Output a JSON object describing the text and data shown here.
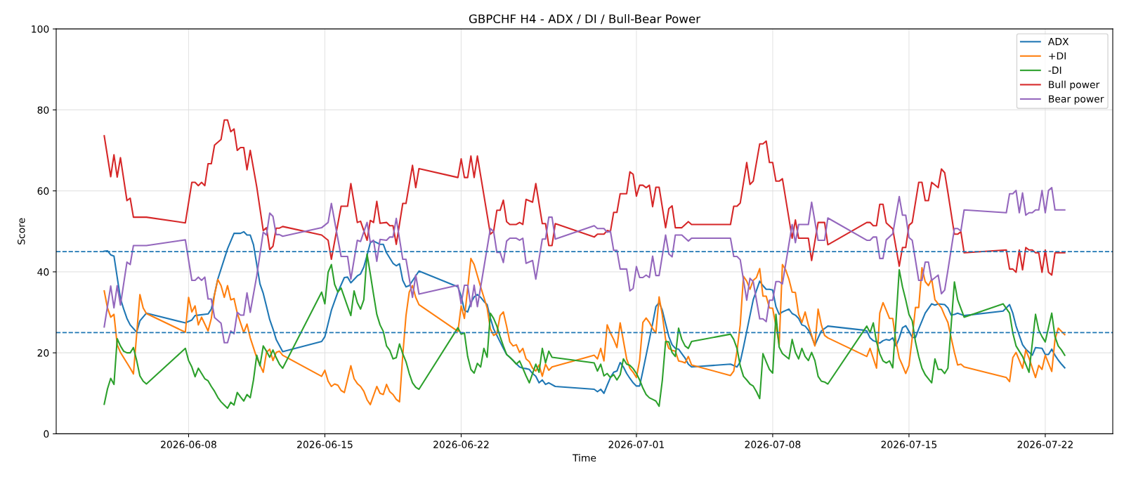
{
  "chart_data": {
    "type": "line",
    "title": "GBPCHF H4 - ADX / DI / Bull-Bear Power",
    "xlabel": "Time",
    "ylabel": "Score",
    "xlim": [
      "2026-06-01T04:48",
      "2026-07-25T11:12"
    ],
    "ylim": [
      0,
      100
    ],
    "xticks": [
      "2026-06-08",
      "2026-06-15",
      "2026-06-22",
      "2026-07-01",
      "2026-07-08",
      "2026-07-15",
      "2026-07-22"
    ],
    "yticks": [
      0,
      20,
      40,
      60,
      80,
      100
    ],
    "grid": true,
    "legend": "top right",
    "line_style": "solid",
    "ref_lines": [
      {
        "axis": "y",
        "value": 45,
        "color": "#1f77b4",
        "line_style": "dashed"
      },
      {
        "axis": "y",
        "value": 25,
        "color": "#1f77b4",
        "line_style": "dashed"
      }
    ],
    "x": [
      "2026-06-03T16:00",
      "2026-06-04T00:00",
      "2026-06-04T04:00",
      "2026-06-04T08:00",
      "2026-06-04T12:00",
      "2026-06-04T20:00",
      "2026-06-05T00:00",
      "2026-06-05T04:00",
      "2026-06-05T20:00",
      "2026-06-07T20:00",
      "2026-06-08T04:00",
      "2026-06-08T08:00",
      "2026-06-08T12:00",
      "2026-06-08T16:00",
      "2026-06-08T20:00",
      "2026-06-09T00:00",
      "2026-06-09T04:00",
      "2026-06-09T08:00",
      "2026-06-09T16:00",
      "2026-06-09T20:00",
      "2026-06-10T00:00",
      "2026-06-10T04:00",
      "2026-06-10T08:00",
      "2026-06-10T12:00",
      "2026-06-10T16:00",
      "2026-06-10T20:00",
      "2026-06-11T00:00",
      "2026-06-11T04:00",
      "2026-06-11T12:00",
      "2026-06-11T20:00",
      "2026-06-12T00:00",
      "2026-06-12T04:00",
      "2026-06-12T08:00",
      "2026-06-12T12:00",
      "2026-06-12T16:00",
      "2026-06-12T20:00",
      "2026-06-14T20:00",
      "2026-06-15T04:00",
      "2026-06-15T08:00",
      "2026-06-15T20:00",
      "2026-06-16T04:00",
      "2026-06-16T08:00",
      "2026-06-16T16:00",
      "2026-06-16T20:00",
      "2026-06-17T04:00",
      "2026-06-17T08:00",
      "2026-06-17T12:00",
      "2026-06-17T16:00",
      "2026-06-17T20:00",
      "2026-06-18T04:00",
      "2026-06-18T08:00",
      "2026-06-18T12:00",
      "2026-06-18T16:00",
      "2026-06-19T00:00",
      "2026-06-19T04:00",
      "2026-06-19T12:00",
      "2026-06-19T16:00",
      "2026-06-19T20:00",
      "2026-06-21T20:00",
      "2026-06-22T00:00",
      "2026-06-22T04:00",
      "2026-06-22T08:00",
      "2026-06-22T12:00",
      "2026-06-22T16:00",
      "2026-06-22T20:00",
      "2026-06-23T12:00",
      "2026-06-23T16:00",
      "2026-06-23T20:00",
      "2026-06-24T00:00",
      "2026-06-24T04:00",
      "2026-06-24T08:00",
      "2026-06-24T12:00",
      "2026-06-24T20:00",
      "2026-06-25T00:00",
      "2026-06-25T04:00",
      "2026-06-25T08:00",
      "2026-06-25T16:00",
      "2026-06-25T20:00",
      "2026-06-26T04:00",
      "2026-06-26T08:00",
      "2026-06-26T12:00",
      "2026-06-26T16:00",
      "2026-06-26T20:00",
      "2026-06-28T20:00",
      "2026-06-29T00:00",
      "2026-06-29T08:00",
      "2026-06-29T12:00",
      "2026-06-29T16:00",
      "2026-06-29T20:00",
      "2026-06-30T00:00",
      "2026-06-30T04:00",
      "2026-06-30T12:00",
      "2026-06-30T16:00",
      "2026-06-30T20:00",
      "2026-07-01T00:00",
      "2026-07-01T04:00",
      "2026-07-01T08:00",
      "2026-07-01T12:00",
      "2026-07-01T16:00",
      "2026-07-01T20:00",
      "2026-07-02T00:00",
      "2026-07-02T04:00",
      "2026-07-02T12:00",
      "2026-07-02T16:00",
      "2026-07-02T20:00",
      "2026-07-03T00:00",
      "2026-07-03T08:00",
      "2026-07-03T16:00",
      "2026-07-03T20:00",
      "2026-07-05T20:00",
      "2026-07-06T00:00",
      "2026-07-06T04:00",
      "2026-07-06T08:00",
      "2026-07-06T16:00",
      "2026-07-06T20:00",
      "2026-07-07T00:00",
      "2026-07-07T08:00",
      "2026-07-07T12:00",
      "2026-07-07T16:00",
      "2026-07-07T20:00",
      "2026-07-08T00:00",
      "2026-07-08T04:00",
      "2026-07-08T08:00",
      "2026-07-08T12:00",
      "2026-07-09T00:00",
      "2026-07-09T04:00",
      "2026-07-09T08:00",
      "2026-07-09T20:00",
      "2026-07-10T00:00",
      "2026-07-10T08:00",
      "2026-07-10T16:00",
      "2026-07-10T20:00",
      "2026-07-12T20:00",
      "2026-07-13T00:00",
      "2026-07-13T04:00",
      "2026-07-13T08:00",
      "2026-07-13T12:00",
      "2026-07-13T16:00",
      "2026-07-13T20:00",
      "2026-07-14T04:00",
      "2026-07-14T12:00",
      "2026-07-14T16:00",
      "2026-07-14T20:00",
      "2026-07-15T00:00",
      "2026-07-15T04:00",
      "2026-07-15T12:00",
      "2026-07-15T16:00",
      "2026-07-15T20:00",
      "2026-07-16T00:00",
      "2026-07-16T04:00",
      "2026-07-16T12:00",
      "2026-07-16T16:00",
      "2026-07-16T20:00",
      "2026-07-17T00:00",
      "2026-07-17T08:00",
      "2026-07-17T12:00",
      "2026-07-17T16:00",
      "2026-07-17T20:00",
      "2026-07-20T00:00",
      "2026-07-20T04:00",
      "2026-07-20T08:00",
      "2026-07-20T12:00",
      "2026-07-20T16:00",
      "2026-07-20T20:00",
      "2026-07-21T00:00",
      "2026-07-21T04:00",
      "2026-07-21T08:00",
      "2026-07-21T12:00",
      "2026-07-21T16:00",
      "2026-07-21T20:00",
      "2026-07-22T00:00",
      "2026-07-22T04:00",
      "2026-07-22T08:00",
      "2026-07-22T12:00",
      "2026-07-23T00:00"
    ],
    "series": [
      {
        "name": "ADX",
        "color": "#1f77b4",
        "x": [
          "2026-06-03T16:00",
          "2026-06-03T20:00",
          "2026-06-04T00:00",
          "2026-06-04T04:00",
          "2026-06-04T12:00",
          "2026-06-04T16:00",
          "2026-06-04T20:00",
          "2026-06-05T00:00",
          "2026-06-05T08:00",
          "2026-06-05T12:00",
          "2026-06-05T20:00",
          "2026-06-07T20:00",
          "2026-06-08T04:00",
          "2026-06-08T08:00",
          "2026-06-09T00:00",
          "2026-06-09T04:00",
          "2026-06-09T12:00",
          "2026-06-10T00:00",
          "2026-06-10T08:00",
          "2026-06-10T16:00",
          "2026-06-10T20:00",
          "2026-06-11T00:00",
          "2026-06-11T04:00",
          "2026-06-11T08:00",
          "2026-06-11T16:00",
          "2026-06-11T20:00",
          "2026-06-12T00:00",
          "2026-06-12T04:00",
          "2026-06-12T08:00",
          "2026-06-12T12:00",
          "2026-06-12T20:00",
          "2026-06-14T20:00",
          "2026-06-15T00:00",
          "2026-06-15T08:00",
          "2026-06-15T16:00",
          "2026-06-16T00:00",
          "2026-06-16T04:00",
          "2026-06-16T08:00",
          "2026-06-16T16:00",
          "2026-06-16T20:00",
          "2026-06-17T00:00",
          "2026-06-17T04:00",
          "2026-06-17T08:00",
          "2026-06-17T12:00",
          "2026-06-17T20:00",
          "2026-06-18T00:00",
          "2026-06-18T04:00",
          "2026-06-18T08:00",
          "2026-06-18T12:00",
          "2026-06-18T16:00",
          "2026-06-18T20:00",
          "2026-06-19T00:00",
          "2026-06-19T04:00",
          "2026-06-19T08:00",
          "2026-06-19T20:00",
          "2026-06-21T20:00",
          "2026-06-22T00:00",
          "2026-06-22T04:00",
          "2026-06-22T08:00",
          "2026-06-22T12:00",
          "2026-06-22T16:00",
          "2026-06-22T20:00",
          "2026-06-23T00:00",
          "2026-06-23T04:00",
          "2026-06-23T08:00",
          "2026-06-23T12:00",
          "2026-06-23T16:00",
          "2026-06-23T20:00",
          "2026-06-24T00:00",
          "2026-06-24T04:00",
          "2026-06-24T08:00",
          "2026-06-24T12:00",
          "2026-06-24T16:00",
          "2026-06-24T20:00",
          "2026-06-25T00:00",
          "2026-06-25T04:00",
          "2026-06-25T08:00",
          "2026-06-25T12:00",
          "2026-06-25T16:00",
          "2026-06-25T20:00",
          "2026-06-26T00:00",
          "2026-06-26T04:00",
          "2026-06-26T08:00",
          "2026-06-26T12:00",
          "2026-06-26T20:00",
          "2026-06-28T20:00",
          "2026-06-29T00:00",
          "2026-06-29T04:00",
          "2026-06-29T08:00",
          "2026-06-29T12:00",
          "2026-06-29T16:00",
          "2026-06-29T20:00",
          "2026-06-30T00:00",
          "2026-06-30T04:00",
          "2026-06-30T08:00",
          "2026-06-30T12:00",
          "2026-06-30T16:00",
          "2026-06-30T20:00",
          "2026-07-01T00:00",
          "2026-07-01T04:00",
          "2026-07-01T08:00",
          "2026-07-01T12:00",
          "2026-07-01T16:00",
          "2026-07-01T20:00",
          "2026-07-02T00:00",
          "2026-07-02T04:00",
          "2026-07-02T08:00",
          "2026-07-02T12:00",
          "2026-07-02T16:00",
          "2026-07-02T20:00",
          "2026-07-03T00:00",
          "2026-07-03T04:00",
          "2026-07-03T08:00",
          "2026-07-03T12:00",
          "2026-07-03T16:00",
          "2026-07-03T20:00",
          "2026-07-05T20:00",
          "2026-07-06T04:00",
          "2026-07-06T08:00",
          "2026-07-06T12:00",
          "2026-07-06T16:00",
          "2026-07-07T00:00",
          "2026-07-07T08:00",
          "2026-07-07T12:00",
          "2026-07-07T16:00",
          "2026-07-07T20:00",
          "2026-07-08T00:00",
          "2026-07-08T04:00",
          "2026-07-08T08:00",
          "2026-07-08T12:00",
          "2026-07-08T20:00",
          "2026-07-09T00:00",
          "2026-07-09T04:00",
          "2026-07-09T08:00",
          "2026-07-09T12:00",
          "2026-07-09T16:00",
          "2026-07-09T20:00",
          "2026-07-10T00:00",
          "2026-07-10T04:00",
          "2026-07-10T08:00",
          "2026-07-10T12:00",
          "2026-07-10T20:00",
          "2026-07-12T16:00",
          "2026-07-12T20:00",
          "2026-07-13T00:00",
          "2026-07-13T04:00",
          "2026-07-13T08:00",
          "2026-07-13T12:00",
          "2026-07-13T16:00",
          "2026-07-13T20:00",
          "2026-07-14T00:00",
          "2026-07-14T04:00",
          "2026-07-14T08:00",
          "2026-07-14T12:00",
          "2026-07-14T16:00",
          "2026-07-14T20:00",
          "2026-07-15T00:00",
          "2026-07-15T04:00",
          "2026-07-15T08:00",
          "2026-07-15T12:00",
          "2026-07-15T20:00",
          "2026-07-16T04:00",
          "2026-07-16T08:00",
          "2026-07-16T12:00",
          "2026-07-16T20:00",
          "2026-07-17T00:00",
          "2026-07-17T04:00",
          "2026-07-17T08:00",
          "2026-07-17T12:00",
          "2026-07-17T20:00",
          "2026-07-19T20:00",
          "2026-07-20T04:00",
          "2026-07-20T08:00",
          "2026-07-20T12:00",
          "2026-07-20T20:00",
          "2026-07-21T00:00",
          "2026-07-21T08:00",
          "2026-07-21T12:00",
          "2026-07-21T20:00",
          "2026-07-22T00:00",
          "2026-07-22T04:00",
          "2026-07-22T08:00",
          "2026-07-22T12:00",
          "2026-07-22T16:00",
          "2026-07-22T20:00",
          "2026-07-23T00:00"
        ],
        "values": [
          45.1,
          45.2,
          44.2,
          43.9,
          33.4,
          30.8,
          28.5,
          26.9,
          25.1,
          27.9,
          29.8,
          27.4,
          28.1,
          29.2,
          29.6,
          30.8,
          38.2,
          45.7,
          49.5,
          49.5,
          49.9,
          49.1,
          49.1,
          46.7,
          37.0,
          34.7,
          31.5,
          28.2,
          25.9,
          23.3,
          20.3,
          22.8,
          24.0,
          30.5,
          35.0,
          38.6,
          38.7,
          37.3,
          39.0,
          39.5,
          41.2,
          44.1,
          47.2,
          47.6,
          46.8,
          46.8,
          44.7,
          43.4,
          42.1,
          41.5,
          42.0,
          37.9,
          36.3,
          36.6,
          40.2,
          36.3,
          34.0,
          30.5,
          30.1,
          32.4,
          33.8,
          34.4,
          33.7,
          32.7,
          31.9,
          28.6,
          25.9,
          24.3,
          22.7,
          21.1,
          19.6,
          18.9,
          18.1,
          17.3,
          16.5,
          16.2,
          16.1,
          15.9,
          14.9,
          14.2,
          12.6,
          13.3,
          12.2,
          12.6,
          11.7,
          11.0,
          10.4,
          11.0,
          10.0,
          12.0,
          13.9,
          15.2,
          15.5,
          17.6,
          16.5,
          14.9,
          13.7,
          12.6,
          11.8,
          11.8,
          15.5,
          19.4,
          23.3,
          27.2,
          31.4,
          32.4,
          30.5,
          27.2,
          24.0,
          22.0,
          21.1,
          20.9,
          19.8,
          18.7,
          17.2,
          16.5,
          17.2,
          16.5,
          17.8,
          21.4,
          25.3,
          33.1,
          37.7,
          36.6,
          35.7,
          35.7,
          35.5,
          31.4,
          29.5,
          30.1,
          30.8,
          29.7,
          29.3,
          28.5,
          26.9,
          26.6,
          25.6,
          24.0,
          21.9,
          23.7,
          25.4,
          26.6,
          25.6,
          25.4,
          23.7,
          23.0,
          22.7,
          22.4,
          23.0,
          23.3,
          23.1,
          23.7,
          21.7,
          23.7,
          26.2,
          26.7,
          25.3,
          23.8,
          23.8,
          25.9,
          29.8,
          32.1,
          31.8,
          32.1,
          31.9,
          31.1,
          29.3,
          29.5,
          29.8,
          29.2,
          30.3,
          31.9,
          29.8,
          26.6,
          22.0,
          20.9,
          19.4,
          21.3,
          21.1,
          19.6,
          19.6,
          20.9,
          19.4,
          18.2,
          17.2,
          16.3
        ]
      },
      {
        "name": "+DI",
        "color": "#ff7f0e",
        "x": [
          "2026-06-03T16:00",
          "2026-06-03T20:00",
          "2026-06-04T00:00",
          "2026-06-04T04:00",
          "2026-06-04T08:00",
          "2026-06-04T12:00",
          "2026-06-04T20:00",
          "2026-06-05T00:00",
          "2026-06-05T04:00",
          "2026-06-05T08:00",
          "2026-06-05T12:00",
          "2026-06-05T16:00",
          "2026-06-05T20:00",
          "2026-06-07T20:00",
          "2026-06-08T00:00",
          "2026-06-08T04:00",
          "2026-06-08T08:00",
          "2026-06-08T12:00",
          "2026-06-08T16:00",
          "2026-06-09T00:00",
          "2026-06-09T04:00",
          "2026-06-09T08:00",
          "2026-06-09T12:00",
          "2026-06-09T16:00",
          "2026-06-09T20:00",
          "2026-06-10T00:00",
          "2026-06-10T04:00",
          "2026-06-10T08:00",
          "2026-06-10T12:00",
          "2026-06-10T20:00",
          "2026-06-11T00:00",
          "2026-06-11T04:00",
          "2026-06-11T12:00",
          "2026-06-11T20:00",
          "2026-06-12T00:00",
          "2026-06-12T04:00",
          "2026-06-12T08:00",
          "2026-06-12T12:00",
          "2026-06-12T16:00",
          "2026-06-12T20:00",
          "2026-06-14T20:00",
          "2026-06-15T00:00",
          "2026-06-15T04:00",
          "2026-06-15T08:00",
          "2026-06-15T12:00",
          "2026-06-15T16:00",
          "2026-06-15T20:00",
          "2026-06-16T00:00",
          "2026-06-16T08:00",
          "2026-06-16T12:00",
          "2026-06-16T16:00",
          "2026-06-16T20:00",
          "2026-06-17T00:00",
          "2026-06-17T04:00",
          "2026-06-17T08:00",
          "2026-06-17T16:00",
          "2026-06-17T20:00",
          "2026-06-18T00:00",
          "2026-06-18T04:00",
          "2026-06-18T08:00",
          "2026-06-18T12:00",
          "2026-06-18T16:00",
          "2026-06-18T20:00",
          "2026-06-19T00:00",
          "2026-06-19T04:00",
          "2026-06-19T08:00",
          "2026-06-19T12:00",
          "2026-06-19T16:00",
          "2026-06-19T20:00",
          "2026-06-21T20:00",
          "2026-06-22T00:00",
          "2026-06-22T04:00",
          "2026-06-22T12:00",
          "2026-06-22T16:00",
          "2026-06-23T00:00",
          "2026-06-23T04:00",
          "2026-06-23T08:00",
          "2026-06-23T12:00",
          "2026-06-23T16:00",
          "2026-06-23T20:00",
          "2026-06-24T00:00",
          "2026-06-24T04:00",
          "2026-06-24T08:00",
          "2026-06-24T12:00",
          "2026-06-24T16:00",
          "2026-06-24T20:00",
          "2026-06-25T00:00",
          "2026-06-25T04:00",
          "2026-06-25T08:00",
          "2026-06-25T12:00",
          "2026-06-25T16:00",
          "2026-06-25T20:00",
          "2026-06-26T00:00",
          "2026-06-26T04:00",
          "2026-06-26T08:00",
          "2026-06-26T12:00",
          "2026-06-26T16:00",
          "2026-06-28T20:00",
          "2026-06-29T00:00",
          "2026-06-29T04:00",
          "2026-06-29T08:00",
          "2026-06-29T12:00",
          "2026-06-29T16:00",
          "2026-06-29T20:00",
          "2026-06-30T00:00",
          "2026-06-30T04:00",
          "2026-06-30T12:00",
          "2026-06-30T16:00",
          "2026-06-30T20:00",
          "2026-07-01T00:00",
          "2026-07-01T04:00",
          "2026-07-01T08:00",
          "2026-07-01T12:00",
          "2026-07-01T16:00",
          "2026-07-01T20:00",
          "2026-07-02T00:00",
          "2026-07-02T04:00",
          "2026-07-02T08:00",
          "2026-07-02T12:00",
          "2026-07-02T16:00",
          "2026-07-02T20:00",
          "2026-07-03T00:00",
          "2026-07-03T04:00",
          "2026-07-03T08:00",
          "2026-07-03T12:00",
          "2026-07-03T16:00",
          "2026-07-03T20:00",
          "2026-07-05T20:00",
          "2026-07-06T00:00",
          "2026-07-06T04:00",
          "2026-07-06T08:00",
          "2026-07-06T12:00",
          "2026-07-06T16:00",
          "2026-07-06T20:00",
          "2026-07-07T00:00",
          "2026-07-07T04:00",
          "2026-07-07T08:00",
          "2026-07-07T12:00",
          "2026-07-07T16:00",
          "2026-07-07T20:00",
          "2026-07-08T00:00",
          "2026-07-08T04:00",
          "2026-07-08T08:00",
          "2026-07-08T12:00",
          "2026-07-08T16:00",
          "2026-07-08T20:00",
          "2026-07-09T00:00",
          "2026-07-09T04:00",
          "2026-07-09T08:00",
          "2026-07-09T12:00",
          "2026-07-09T16:00",
          "2026-07-09T20:00",
          "2026-07-10T04:00",
          "2026-07-10T08:00",
          "2026-07-10T12:00",
          "2026-07-10T16:00",
          "2026-07-10T20:00",
          "2026-07-12T20:00",
          "2026-07-13T00:00",
          "2026-07-13T08:00",
          "2026-07-13T12:00",
          "2026-07-13T16:00",
          "2026-07-13T20:00",
          "2026-07-14T00:00",
          "2026-07-14T04:00",
          "2026-07-14T08:00",
          "2026-07-14T12:00",
          "2026-07-14T16:00",
          "2026-07-14T20:00",
          "2026-07-15T00:00",
          "2026-07-15T04:00",
          "2026-07-15T08:00",
          "2026-07-15T12:00",
          "2026-07-15T16:00",
          "2026-07-15T20:00",
          "2026-07-16T00:00",
          "2026-07-16T04:00",
          "2026-07-16T08:00",
          "2026-07-16T16:00",
          "2026-07-16T20:00",
          "2026-07-17T00:00",
          "2026-07-17T04:00",
          "2026-07-17T08:00",
          "2026-07-17T12:00",
          "2026-07-17T16:00",
          "2026-07-17T20:00",
          "2026-07-20T00:00",
          "2026-07-20T04:00",
          "2026-07-20T08:00",
          "2026-07-20T12:00",
          "2026-07-20T20:00",
          "2026-07-21T00:00",
          "2026-07-21T04:00",
          "2026-07-21T12:00",
          "2026-07-21T16:00",
          "2026-07-21T20:00",
          "2026-07-22T00:00",
          "2026-07-22T08:00",
          "2026-07-22T12:00",
          "2026-07-22T16:00",
          "2026-07-23T00:00"
        ],
        "values": [
          35.3,
          31.1,
          28.8,
          29.5,
          22.0,
          20.1,
          17.5,
          16.2,
          14.8,
          24.6,
          34.4,
          31.1,
          29.7,
          25.1,
          33.7,
          30.1,
          31.6,
          26.9,
          28.8,
          25.4,
          28.5,
          34.4,
          38.1,
          36.6,
          33.7,
          36.6,
          33.1,
          33.4,
          29.8,
          25.0,
          27.1,
          23.7,
          18.8,
          15.2,
          20.1,
          20.9,
          18.1,
          20.1,
          20.4,
          19.4,
          14.2,
          15.7,
          13.0,
          11.7,
          12.3,
          12.0,
          10.7,
          10.2,
          16.8,
          13.6,
          12.4,
          11.7,
          10.5,
          8.4,
          7.2,
          11.7,
          10.0,
          9.7,
          12.2,
          10.4,
          9.7,
          8.5,
          7.9,
          19.4,
          29.2,
          35.0,
          36.6,
          33.7,
          31.9,
          25.3,
          31.6,
          28.5,
          43.3,
          41.8,
          36.3,
          33.7,
          31.1,
          25.9,
          24.3,
          24.8,
          29.2,
          30.1,
          26.6,
          22.7,
          21.7,
          22.0,
          20.1,
          21.1,
          18.5,
          17.8,
          16.2,
          15.5,
          17.0,
          14.2,
          17.2,
          15.7,
          16.5,
          19.4,
          18.5,
          21.1,
          18.0,
          26.9,
          24.9,
          23.3,
          21.3,
          27.4,
          18.5,
          16.2,
          15.2,
          13.9,
          18.1,
          27.5,
          28.6,
          27.5,
          26.0,
          24.9,
          33.8,
          29.3,
          23.3,
          21.1,
          20.6,
          20.4,
          18.0,
          17.8,
          17.5,
          19.1,
          17.0,
          14.4,
          15.5,
          20.4,
          26.9,
          38.9,
          37.7,
          35.7,
          37.9,
          38.6,
          40.8,
          34.0,
          34.0,
          31.1,
          31.0,
          26.6,
          22.0,
          41.8,
          40.5,
          38.2,
          35.0,
          34.9,
          29.5,
          27.5,
          30.1,
          26.9,
          21.7,
          30.8,
          26.9,
          24.3,
          23.7,
          19.1,
          21.1,
          16.2,
          29.8,
          32.4,
          30.5,
          28.5,
          28.5,
          22.7,
          18.7,
          16.9,
          14.9,
          16.9,
          23.7,
          31.2,
          31.2,
          41.0,
          37.6,
          36.6,
          38.2,
          33.1,
          31.1,
          29.2,
          27.5,
          23.7,
          20.1,
          17.0,
          17.2,
          16.5,
          13.9,
          12.9,
          18.8,
          20.1,
          16.2,
          20.7,
          18.7,
          13.9,
          16.9,
          15.9,
          19.4,
          15.4,
          23.3,
          26.1,
          24.5
        ]
      },
      {
        "name": "-DI",
        "color": "#2ca02c",
        "x": [
          "2026-06-03T16:00",
          "2026-06-03T20:00",
          "2026-06-04T00:00",
          "2026-06-04T04:00",
          "2026-06-04T08:00",
          "2026-06-04T12:00",
          "2026-06-04T16:00",
          "2026-06-04T20:00",
          "2026-06-05T00:00",
          "2026-06-05T04:00",
          "2026-06-05T08:00",
          "2026-06-05T12:00",
          "2026-06-05T16:00",
          "2026-06-05T20:00",
          "2026-06-07T20:00",
          "2026-06-08T00:00",
          "2026-06-08T04:00",
          "2026-06-08T08:00",
          "2026-06-08T12:00",
          "2026-06-08T16:00",
          "2026-06-08T20:00",
          "2026-06-09T00:00",
          "2026-06-09T04:00",
          "2026-06-09T08:00",
          "2026-06-09T12:00",
          "2026-06-09T16:00",
          "2026-06-09T20:00",
          "2026-06-10T00:00",
          "2026-06-10T04:00",
          "2026-06-10T08:00",
          "2026-06-10T12:00",
          "2026-06-10T16:00",
          "2026-06-10T20:00",
          "2026-06-11T00:00",
          "2026-06-11T04:00",
          "2026-06-11T08:00",
          "2026-06-11T12:00",
          "2026-06-11T16:00",
          "2026-06-11T20:00",
          "2026-06-12T00:00",
          "2026-06-12T04:00",
          "2026-06-12T08:00",
          "2026-06-12T12:00",
          "2026-06-12T16:00",
          "2026-06-12T20:00",
          "2026-06-14T20:00",
          "2026-06-15T00:00",
          "2026-06-15T04:00",
          "2026-06-15T08:00",
          "2026-06-15T12:00",
          "2026-06-15T16:00",
          "2026-06-15T20:00",
          "2026-06-16T00:00",
          "2026-06-16T04:00",
          "2026-06-16T08:00",
          "2026-06-16T12:00",
          "2026-06-16T16:00",
          "2026-06-16T20:00",
          "2026-06-17T00:00",
          "2026-06-17T04:00",
          "2026-06-17T08:00",
          "2026-06-17T12:00",
          "2026-06-17T16:00",
          "2026-06-17T20:00",
          "2026-06-18T00:00",
          "2026-06-18T04:00",
          "2026-06-18T08:00",
          "2026-06-18T12:00",
          "2026-06-18T16:00",
          "2026-06-18T20:00",
          "2026-06-19T00:00",
          "2026-06-19T04:00",
          "2026-06-19T08:00",
          "2026-06-19T12:00",
          "2026-06-19T16:00",
          "2026-06-19T20:00",
          "2026-06-21T20:00",
          "2026-06-22T00:00",
          "2026-06-22T04:00",
          "2026-06-22T08:00",
          "2026-06-22T12:00",
          "2026-06-22T16:00",
          "2026-06-22T20:00",
          "2026-06-23T00:00",
          "2026-06-23T04:00",
          "2026-06-23T08:00",
          "2026-06-23T12:00",
          "2026-06-23T16:00",
          "2026-06-23T20:00",
          "2026-06-24T00:00",
          "2026-06-24T04:00",
          "2026-06-24T08:00",
          "2026-06-24T12:00",
          "2026-06-24T16:00",
          "2026-06-24T20:00",
          "2026-06-25T00:00",
          "2026-06-25T04:00",
          "2026-06-25T08:00",
          "2026-06-25T12:00",
          "2026-06-25T16:00",
          "2026-06-25T20:00",
          "2026-06-26T00:00",
          "2026-06-26T04:00",
          "2026-06-26T08:00",
          "2026-06-26T12:00",
          "2026-06-26T16:00",
          "2026-06-28T20:00",
          "2026-06-29T00:00",
          "2026-06-29T04:00",
          "2026-06-29T08:00",
          "2026-06-29T12:00",
          "2026-06-29T16:00",
          "2026-06-29T20:00",
          "2026-06-30T00:00",
          "2026-06-30T04:00",
          "2026-06-30T08:00",
          "2026-06-30T12:00",
          "2026-06-30T16:00",
          "2026-06-30T20:00",
          "2026-07-01T00:00",
          "2026-07-01T04:00",
          "2026-07-01T08:00",
          "2026-07-01T12:00",
          "2026-07-01T16:00",
          "2026-07-01T20:00",
          "2026-07-02T00:00",
          "2026-07-02T04:00",
          "2026-07-02T08:00",
          "2026-07-02T12:00",
          "2026-07-02T16:00",
          "2026-07-02T20:00",
          "2026-07-03T00:00",
          "2026-07-03T04:00",
          "2026-07-03T08:00",
          "2026-07-03T12:00",
          "2026-07-03T16:00",
          "2026-07-03T20:00",
          "2026-07-05T20:00",
          "2026-07-06T00:00",
          "2026-07-06T04:00",
          "2026-07-06T08:00",
          "2026-07-06T12:00",
          "2026-07-06T16:00",
          "2026-07-06T20:00",
          "2026-07-07T00:00",
          "2026-07-07T04:00",
          "2026-07-07T08:00",
          "2026-07-07T12:00",
          "2026-07-07T16:00",
          "2026-07-07T20:00",
          "2026-07-08T00:00",
          "2026-07-08T04:00",
          "2026-07-08T08:00",
          "2026-07-08T12:00",
          "2026-07-08T20:00",
          "2026-07-09T00:00",
          "2026-07-09T04:00",
          "2026-07-09T08:00",
          "2026-07-09T12:00",
          "2026-07-09T16:00",
          "2026-07-09T20:00",
          "2026-07-10T00:00",
          "2026-07-10T04:00",
          "2026-07-10T08:00",
          "2026-07-10T12:00",
          "2026-07-10T16:00",
          "2026-07-10T20:00",
          "2026-07-12T20:00",
          "2026-07-13T00:00",
          "2026-07-13T04:00",
          "2026-07-13T08:00",
          "2026-07-13T12:00",
          "2026-07-13T16:00",
          "2026-07-13T20:00",
          "2026-07-14T00:00",
          "2026-07-14T04:00",
          "2026-07-14T08:00",
          "2026-07-14T12:00",
          "2026-07-14T16:00",
          "2026-07-14T20:00",
          "2026-07-15T00:00",
          "2026-07-15T04:00",
          "2026-07-15T08:00",
          "2026-07-15T12:00",
          "2026-07-15T16:00",
          "2026-07-15T20:00",
          "2026-07-16T00:00",
          "2026-07-16T04:00",
          "2026-07-16T08:00",
          "2026-07-16T12:00",
          "2026-07-16T16:00",
          "2026-07-16T20:00",
          "2026-07-17T00:00",
          "2026-07-17T08:00",
          "2026-07-17T12:00",
          "2026-07-17T20:00",
          "2026-07-19T20:00",
          "2026-07-20T04:00",
          "2026-07-20T08:00",
          "2026-07-20T12:00",
          "2026-07-20T20:00",
          "2026-07-21T04:00",
          "2026-07-21T12:00",
          "2026-07-21T16:00",
          "2026-07-21T20:00",
          "2026-07-22T00:00",
          "2026-07-22T08:00",
          "2026-07-22T12:00",
          "2026-07-22T16:00",
          "2026-07-22T20:00",
          "2026-07-23T00:00"
        ],
        "values": [
          7.3,
          11.1,
          13.7,
          12.2,
          23.5,
          21.7,
          20.4,
          20.0,
          20.0,
          21.3,
          18.1,
          14.3,
          13.0,
          12.3,
          21.1,
          18.1,
          16.5,
          14.1,
          16.2,
          14.9,
          13.6,
          13.1,
          11.7,
          10.5,
          9.0,
          7.9,
          7.1,
          6.3,
          7.8,
          7.1,
          10.2,
          9.1,
          8.1,
          9.7,
          8.9,
          13.3,
          19.4,
          16.8,
          21.7,
          20.4,
          18.9,
          20.7,
          18.8,
          17.2,
          16.2,
          35.0,
          32.1,
          39.9,
          41.8,
          36.9,
          35.0,
          36.0,
          33.7,
          31.4,
          29.2,
          35.3,
          32.4,
          30.8,
          33.1,
          44.4,
          39.5,
          34.4,
          29.5,
          26.9,
          25.3,
          21.7,
          20.6,
          18.5,
          18.8,
          22.2,
          19.8,
          17.8,
          14.9,
          12.6,
          11.5,
          11.0,
          26.2,
          24.6,
          24.9,
          19.1,
          15.9,
          15.0,
          17.4,
          16.5,
          21.1,
          18.9,
          29.8,
          28.5,
          26.6,
          24.0,
          21.7,
          19.6,
          18.9,
          18.1,
          17.2,
          18.0,
          16.2,
          14.3,
          12.6,
          14.9,
          17.2,
          15.2,
          21.1,
          17.5,
          20.4,
          18.9,
          17.5,
          15.5,
          17.2,
          14.3,
          14.9,
          13.9,
          14.6,
          13.3,
          14.6,
          18.5,
          17.2,
          16.9,
          16.1,
          14.9,
          13.3,
          11.3,
          9.7,
          8.9,
          8.5,
          8.1,
          6.8,
          13.3,
          22.8,
          22.7,
          20.1,
          19.1,
          26.1,
          23.3,
          21.7,
          21.1,
          22.8,
          24.6,
          23.3,
          21.1,
          16.8,
          14.2,
          13.3,
          12.3,
          11.8,
          10.4,
          8.7,
          19.8,
          17.8,
          15.9,
          15.0,
          29.5,
          21.4,
          19.8,
          18.5,
          23.3,
          20.1,
          18.5,
          21.1,
          19.1,
          18.1,
          20.1,
          18.1,
          14.2,
          13.0,
          12.8,
          12.3,
          26.6,
          25.0,
          27.4,
          22.7,
          19.8,
          18.0,
          17.5,
          18.0,
          16.3,
          27.9,
          40.5,
          36.3,
          33.1,
          29.5,
          27.9,
          22.7,
          19.1,
          16.2,
          14.6,
          13.6,
          12.6,
          18.5,
          15.9,
          15.9,
          14.9,
          16.2,
          37.5,
          33.1,
          28.8,
          32.1,
          29.8,
          24.9,
          21.7,
          19.1,
          15.2,
          29.5,
          25.6,
          24.0,
          22.7,
          29.8,
          24.0,
          21.7,
          20.7,
          19.4
        ]
      },
      {
        "name": "Bull power",
        "color": "#d62728",
        "values": [
          73.6,
          63.5,
          68.9,
          63.4,
          68.2,
          57.6,
          58.2,
          53.5,
          53.5,
          52.1,
          62.1,
          62.1,
          61.3,
          62.1,
          61.3,
          66.7,
          66.7,
          71.3,
          72.7,
          77.5,
          77.5,
          74.6,
          75.3,
          70.0,
          70.7,
          70.7,
          65.2,
          70.0,
          61.0,
          50.2,
          50.9,
          45.5,
          46.3,
          50.8,
          50.8,
          51.2,
          49.1,
          47.8,
          43.1,
          56.2,
          56.2,
          61.8,
          52.2,
          52.5,
          47.8,
          52.7,
          52.2,
          57.4,
          52.0,
          52.2,
          51.4,
          51.4,
          46.8,
          56.9,
          56.9,
          66.3,
          60.8,
          65.5,
          63.3,
          67.9,
          63.3,
          63.3,
          68.6,
          63.3,
          68.6,
          49.3,
          50.0,
          55.2,
          55.2,
          57.7,
          52.4,
          51.7,
          51.7,
          52.2,
          51.7,
          57.9,
          57.2,
          61.8,
          51.9,
          51.9,
          46.5,
          46.5,
          51.9,
          48.6,
          49.3,
          49.3,
          50.2,
          50.0,
          54.7,
          54.7,
          59.3,
          59.3,
          64.7,
          64.1,
          58.7,
          61.4,
          61.4,
          60.8,
          61.4,
          56.1,
          60.9,
          60.9,
          50.9,
          55.6,
          56.3,
          50.9,
          50.9,
          52.4,
          51.7,
          51.7,
          56.2,
          56.2,
          57.0,
          67.0,
          61.6,
          62.4,
          71.6,
          71.6,
          72.3,
          67.0,
          67.0,
          62.4,
          62.4,
          63.0,
          48.3,
          52.8,
          48.3,
          48.3,
          42.8,
          52.2,
          52.2,
          46.7,
          52.2,
          52.2,
          51.4,
          51.4,
          56.7,
          56.7,
          52.1,
          50.6,
          41.4,
          46.0,
          46.0,
          51.5,
          52.2,
          62.1,
          62.1,
          57.6,
          57.6,
          62.1,
          60.8,
          65.4,
          64.5,
          59.6,
          49.3,
          49.3,
          49.9,
          44.7,
          45.4,
          40.7,
          40.7,
          39.9,
          45.4,
          40.5,
          46.0,
          45.4,
          45.4,
          44.7,
          44.7,
          39.9,
          45.4,
          39.9,
          39.2,
          44.7,
          44.7
        ]
      },
      {
        "name": "Bear power",
        "color": "#9467bd",
        "values": [
          26.4,
          36.5,
          31.1,
          36.6,
          31.8,
          42.4,
          41.8,
          46.5,
          46.5,
          47.9,
          37.9,
          37.9,
          38.7,
          37.9,
          38.7,
          33.3,
          33.3,
          28.7,
          27.3,
          22.5,
          22.5,
          25.4,
          24.7,
          30.0,
          29.3,
          29.3,
          34.8,
          30.0,
          39.0,
          49.8,
          49.1,
          54.5,
          53.7,
          49.2,
          49.2,
          48.8,
          50.9,
          52.2,
          56.9,
          43.8,
          43.8,
          38.2,
          47.8,
          47.5,
          52.2,
          47.3,
          47.8,
          42.6,
          48.0,
          47.8,
          48.6,
          48.6,
          53.2,
          43.1,
          43.1,
          33.7,
          39.2,
          34.5,
          36.7,
          32.1,
          36.7,
          36.7,
          31.4,
          36.7,
          31.4,
          50.7,
          50.0,
          44.8,
          44.8,
          42.3,
          47.6,
          48.3,
          48.3,
          47.8,
          48.3,
          42.1,
          42.8,
          38.2,
          48.1,
          48.1,
          53.5,
          53.5,
          48.1,
          51.4,
          50.7,
          50.7,
          49.8,
          50.0,
          45.3,
          45.3,
          40.7,
          40.7,
          35.3,
          35.9,
          41.3,
          38.6,
          38.6,
          39.2,
          38.6,
          43.9,
          39.1,
          39.1,
          49.1,
          44.4,
          43.7,
          49.1,
          49.1,
          47.6,
          48.3,
          48.3,
          43.8,
          43.8,
          43.0,
          33.0,
          38.4,
          37.6,
          28.4,
          28.4,
          27.7,
          33.0,
          33.0,
          37.6,
          37.6,
          37.0,
          51.7,
          47.2,
          51.7,
          51.7,
          57.2,
          47.8,
          47.8,
          53.3,
          47.8,
          47.8,
          48.6,
          48.6,
          43.3,
          43.3,
          47.9,
          49.4,
          58.6,
          54.0,
          54.0,
          48.5,
          47.8,
          37.9,
          37.9,
          42.4,
          42.4,
          37.9,
          39.2,
          34.6,
          35.5,
          40.4,
          50.7,
          50.7,
          50.1,
          55.3,
          54.6,
          59.3,
          59.3,
          60.1,
          54.6,
          59.5,
          54.0,
          54.6,
          54.6,
          55.3,
          55.3,
          60.1,
          54.6,
          60.1,
          60.8,
          55.3,
          55.3
        ]
      }
    ]
  }
}
